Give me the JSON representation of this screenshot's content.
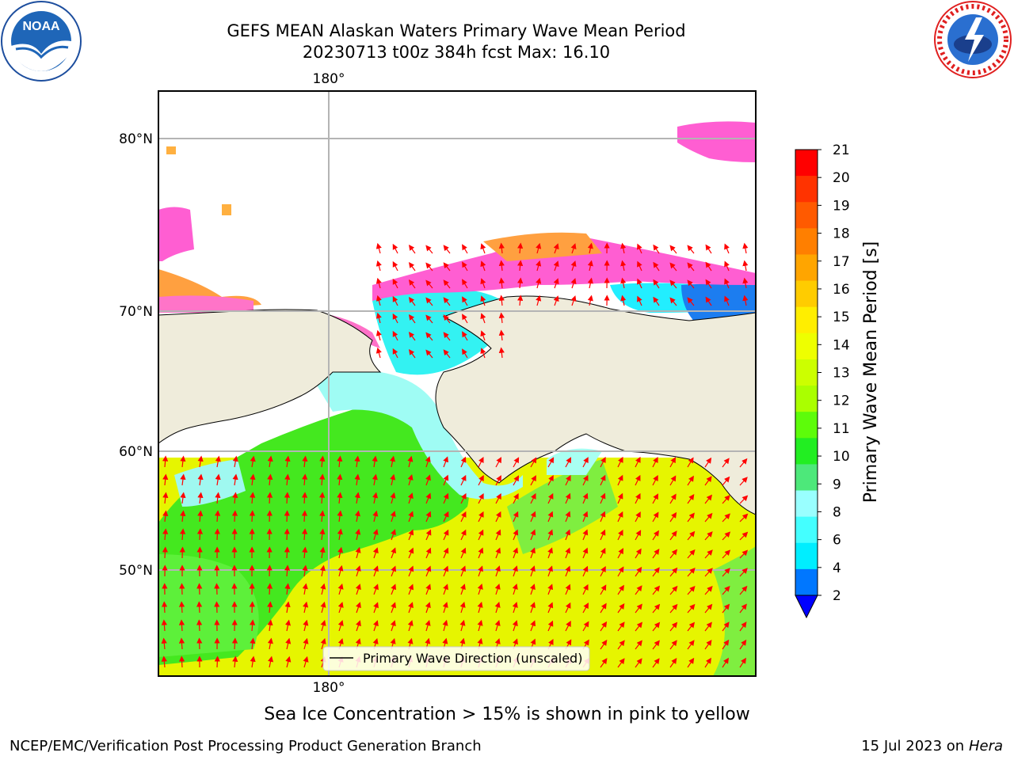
{
  "header": {
    "title_line1": "GEFS MEAN Alaskan Waters Primary Wave Mean Period",
    "title_line2": "20230713 t00z 384h fcst   Max: 16.10"
  },
  "map": {
    "lat_ticks": [
      "80°N",
      "70°N",
      "60°N",
      "50°N"
    ],
    "lon_tick_top": "180°",
    "lon_tick_bottom": "180°",
    "legend_label": "Primary Wave Direction (unscaled)",
    "land_color": "#efecdb",
    "arrow_color": "#ff0000"
  },
  "colorbar": {
    "label": "Primary Wave Mean Period [s]",
    "ticks": [
      "21",
      "20",
      "19",
      "18",
      "17",
      "16",
      "15",
      "14",
      "13",
      "12",
      "11",
      "10",
      "9",
      "8",
      "6",
      "4",
      "2"
    ],
    "colors": [
      "#ff0000",
      "#ff3300",
      "#ff5a00",
      "#ff7f00",
      "#ffa500",
      "#ffcc00",
      "#ffee00",
      "#eeff00",
      "#ccff00",
      "#aaff00",
      "#5dfc0a",
      "#22ee22",
      "#4de87a",
      "#99ffff",
      "#44ffff",
      "#00eeff",
      "#0077ff"
    ],
    "extend_color": "#0000ff"
  },
  "note": "Sea Ice Concentration > 15% is shown in pink to yellow",
  "footer": {
    "left": "NCEP/EMC/Verification Post Processing Product Generation Branch",
    "right_date": "15 Jul 2023 on ",
    "right_host": "Hera"
  },
  "logos": {
    "noaa_text": "NOAA",
    "nws_text": "NATIONAL WEATHER SERVICE"
  }
}
